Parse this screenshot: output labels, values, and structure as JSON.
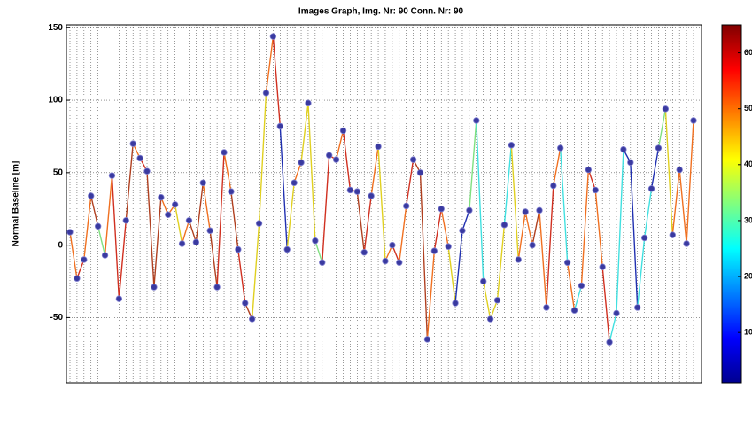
{
  "chart_data": {
    "type": "network-line",
    "title": "Images Graph, Img. Nr: 90 Conn. Nr: 90",
    "y_label": "Normal Baseline [m]",
    "categories": [
      null,
      null,
      null,
      null,
      null,
      null,
      null,
      null,
      null,
      null,
      null,
      null,
      null,
      null,
      null,
      null,
      null,
      null,
      null,
      null,
      null,
      null,
      null,
      null,
      null,
      null,
      null,
      null,
      null,
      null,
      null,
      null,
      null,
      null,
      null,
      null,
      null,
      null,
      null,
      null,
      null,
      null,
      null,
      null,
      null,
      null,
      null,
      null,
      null,
      null,
      null,
      null,
      null,
      null,
      null,
      null,
      null,
      null,
      null,
      null,
      null,
      null,
      null,
      null,
      null,
      null,
      null,
      null,
      null,
      null,
      null,
      null,
      null,
      null,
      null,
      null,
      null,
      null,
      null,
      null,
      null,
      null,
      null,
      null,
      null,
      null,
      null,
      null,
      null,
      null
    ],
    "values": [
      9,
      -23,
      -10,
      34,
      13,
      -7,
      48,
      -37,
      17,
      70,
      60,
      51,
      -29,
      33,
      21,
      28,
      1,
      17,
      2,
      43,
      10,
      -29,
      64,
      37,
      -3,
      -40,
      -51,
      15,
      105,
      144,
      82,
      -3,
      43,
      57,
      98,
      3,
      -12,
      62,
      59,
      79,
      38,
      37,
      -5,
      34,
      68,
      -11,
      0,
      -12,
      27,
      59,
      50,
      -65,
      -4,
      25,
      -1,
      -40,
      10,
      24,
      86,
      -25,
      -51,
      -38,
      14,
      69,
      -10,
      23,
      0,
      24,
      -43,
      41,
      67,
      -12,
      -45,
      -28,
      52,
      38,
      -15,
      -67,
      -47,
      66,
      57,
      -43,
      5,
      39,
      67,
      94,
      7,
      52,
      1,
      86
    ],
    "segment_colors": [
      "#f07020",
      "#d03020",
      "#f07020",
      "#b04020",
      "#80e080",
      "#f07020",
      "#d03020",
      "#d03020",
      "#b04020",
      "#f07020",
      "#d03020",
      "#b04020",
      "#b04020",
      "#f07020",
      "#f07020",
      "#e0d020",
      "#f07020",
      "#b04020",
      "#b04020",
      "#f07020",
      "#b04020",
      "#d03020",
      "#f07020",
      "#b04020",
      "#d03020",
      "#b04020",
      "#e0d020",
      "#e0d020",
      "#f07020",
      "#d03020",
      "#2030b0",
      "#e0d020",
      "#f07020",
      "#e0d020",
      "#e0d020",
      "#80e080",
      "#d03020",
      "#d03020",
      "#f07020",
      "#d03020",
      "#d03020",
      "#b04020",
      "#d03020",
      "#f07020",
      "#e0d020",
      "#f07020",
      "#d03020",
      "#f07020",
      "#d03020",
      "#b04020",
      "#b04020",
      "#f07020",
      "#d03020",
      "#f07020",
      "#e0d020",
      "#2030b0",
      "#2030b0",
      "#80e080",
      "#40e0e0",
      "#e0d020",
      "#e0d020",
      "#e0d020",
      "#40e0e0",
      "#e0d020",
      "#f07020",
      "#f07020",
      "#b04020",
      "#f07020",
      "#d03020",
      "#f07020",
      "#40e0e0",
      "#f07020",
      "#40e0e0",
      "#f07020",
      "#d03020",
      "#f07020",
      "#d03020",
      "#40e0e0",
      "#40e0e0",
      "#2030b0",
      "#2030b0",
      "#40e0e0",
      "#40e0e0",
      "#2030b0",
      "#80e080",
      "#e0d020",
      "#f07020",
      "#f07020",
      "#f07020"
    ],
    "marker_color": "#3a3aa0",
    "ylim": [
      -95,
      152
    ],
    "yticks": [
      -50,
      0,
      50,
      100,
      150
    ],
    "grid": true,
    "clim": [
      1,
      65
    ],
    "cticks": [
      10,
      20,
      30,
      40,
      50,
      60
    ]
  }
}
